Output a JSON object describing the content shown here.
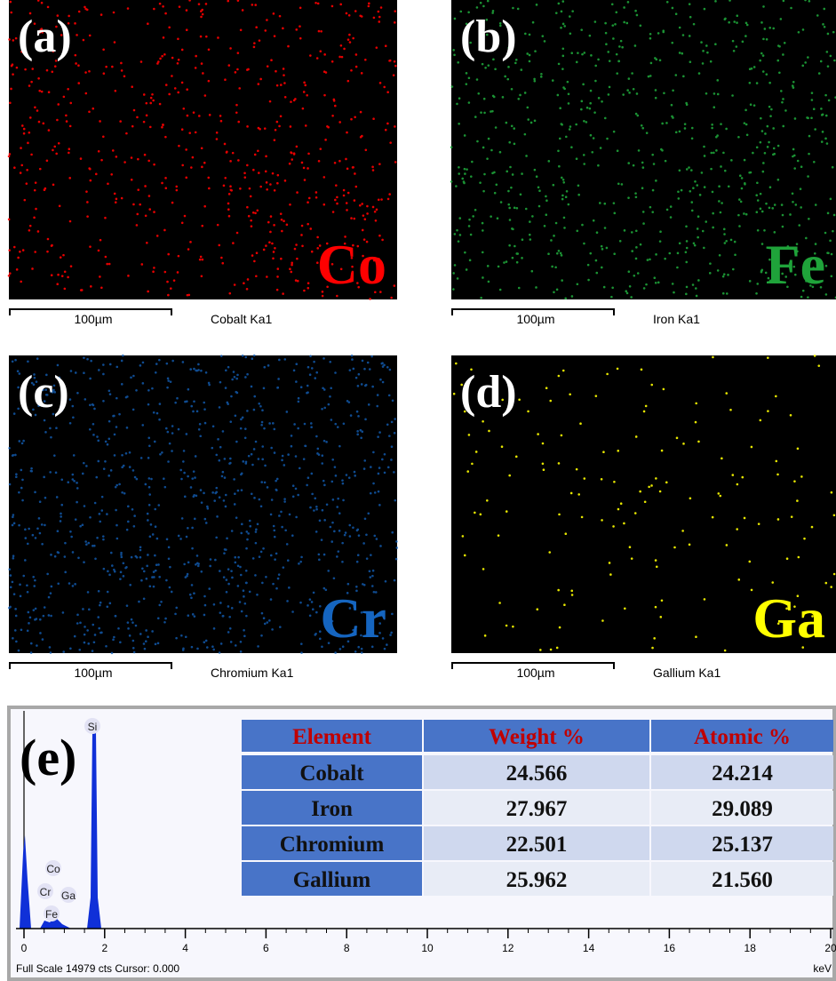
{
  "panels": [
    {
      "label": "(a)",
      "element": "Co",
      "scale": "100µm",
      "line": "Cobalt Ka1",
      "color": "#ff0000"
    },
    {
      "label": "(b)",
      "element": "Fe",
      "scale": "100µm",
      "line": "Iron Ka1",
      "color": "#1fa33a"
    },
    {
      "label": "(c)",
      "element": "Cr",
      "scale": "100µm",
      "line": "Chromium Ka1",
      "color": "#1565c0"
    },
    {
      "label": "(d)",
      "element": "Ga",
      "scale": "100µm",
      "line": "Gallium Ka1",
      "color": "#ffff00"
    }
  ],
  "spectrum": {
    "label": "(e)",
    "peaks": [
      "Si",
      "Co",
      "Cr",
      "Ga",
      "Fe"
    ],
    "xlim": [
      0,
      20
    ],
    "xticks": [
      0,
      2,
      4,
      6,
      8,
      10,
      12,
      14,
      16,
      18,
      20
    ],
    "footer": "Full Scale 14979 cts Cursor: 0.000",
    "unit": "keV"
  },
  "table": {
    "header": [
      "Element",
      "Weight %",
      "Atomic %"
    ],
    "rows": [
      [
        "Cobalt",
        "24.566",
        "24.214"
      ],
      [
        "Iron",
        "27.967",
        "29.089"
      ],
      [
        "Chromium",
        "22.501",
        "25.137"
      ],
      [
        "Gallium",
        "25.962",
        "21.560"
      ]
    ]
  }
}
